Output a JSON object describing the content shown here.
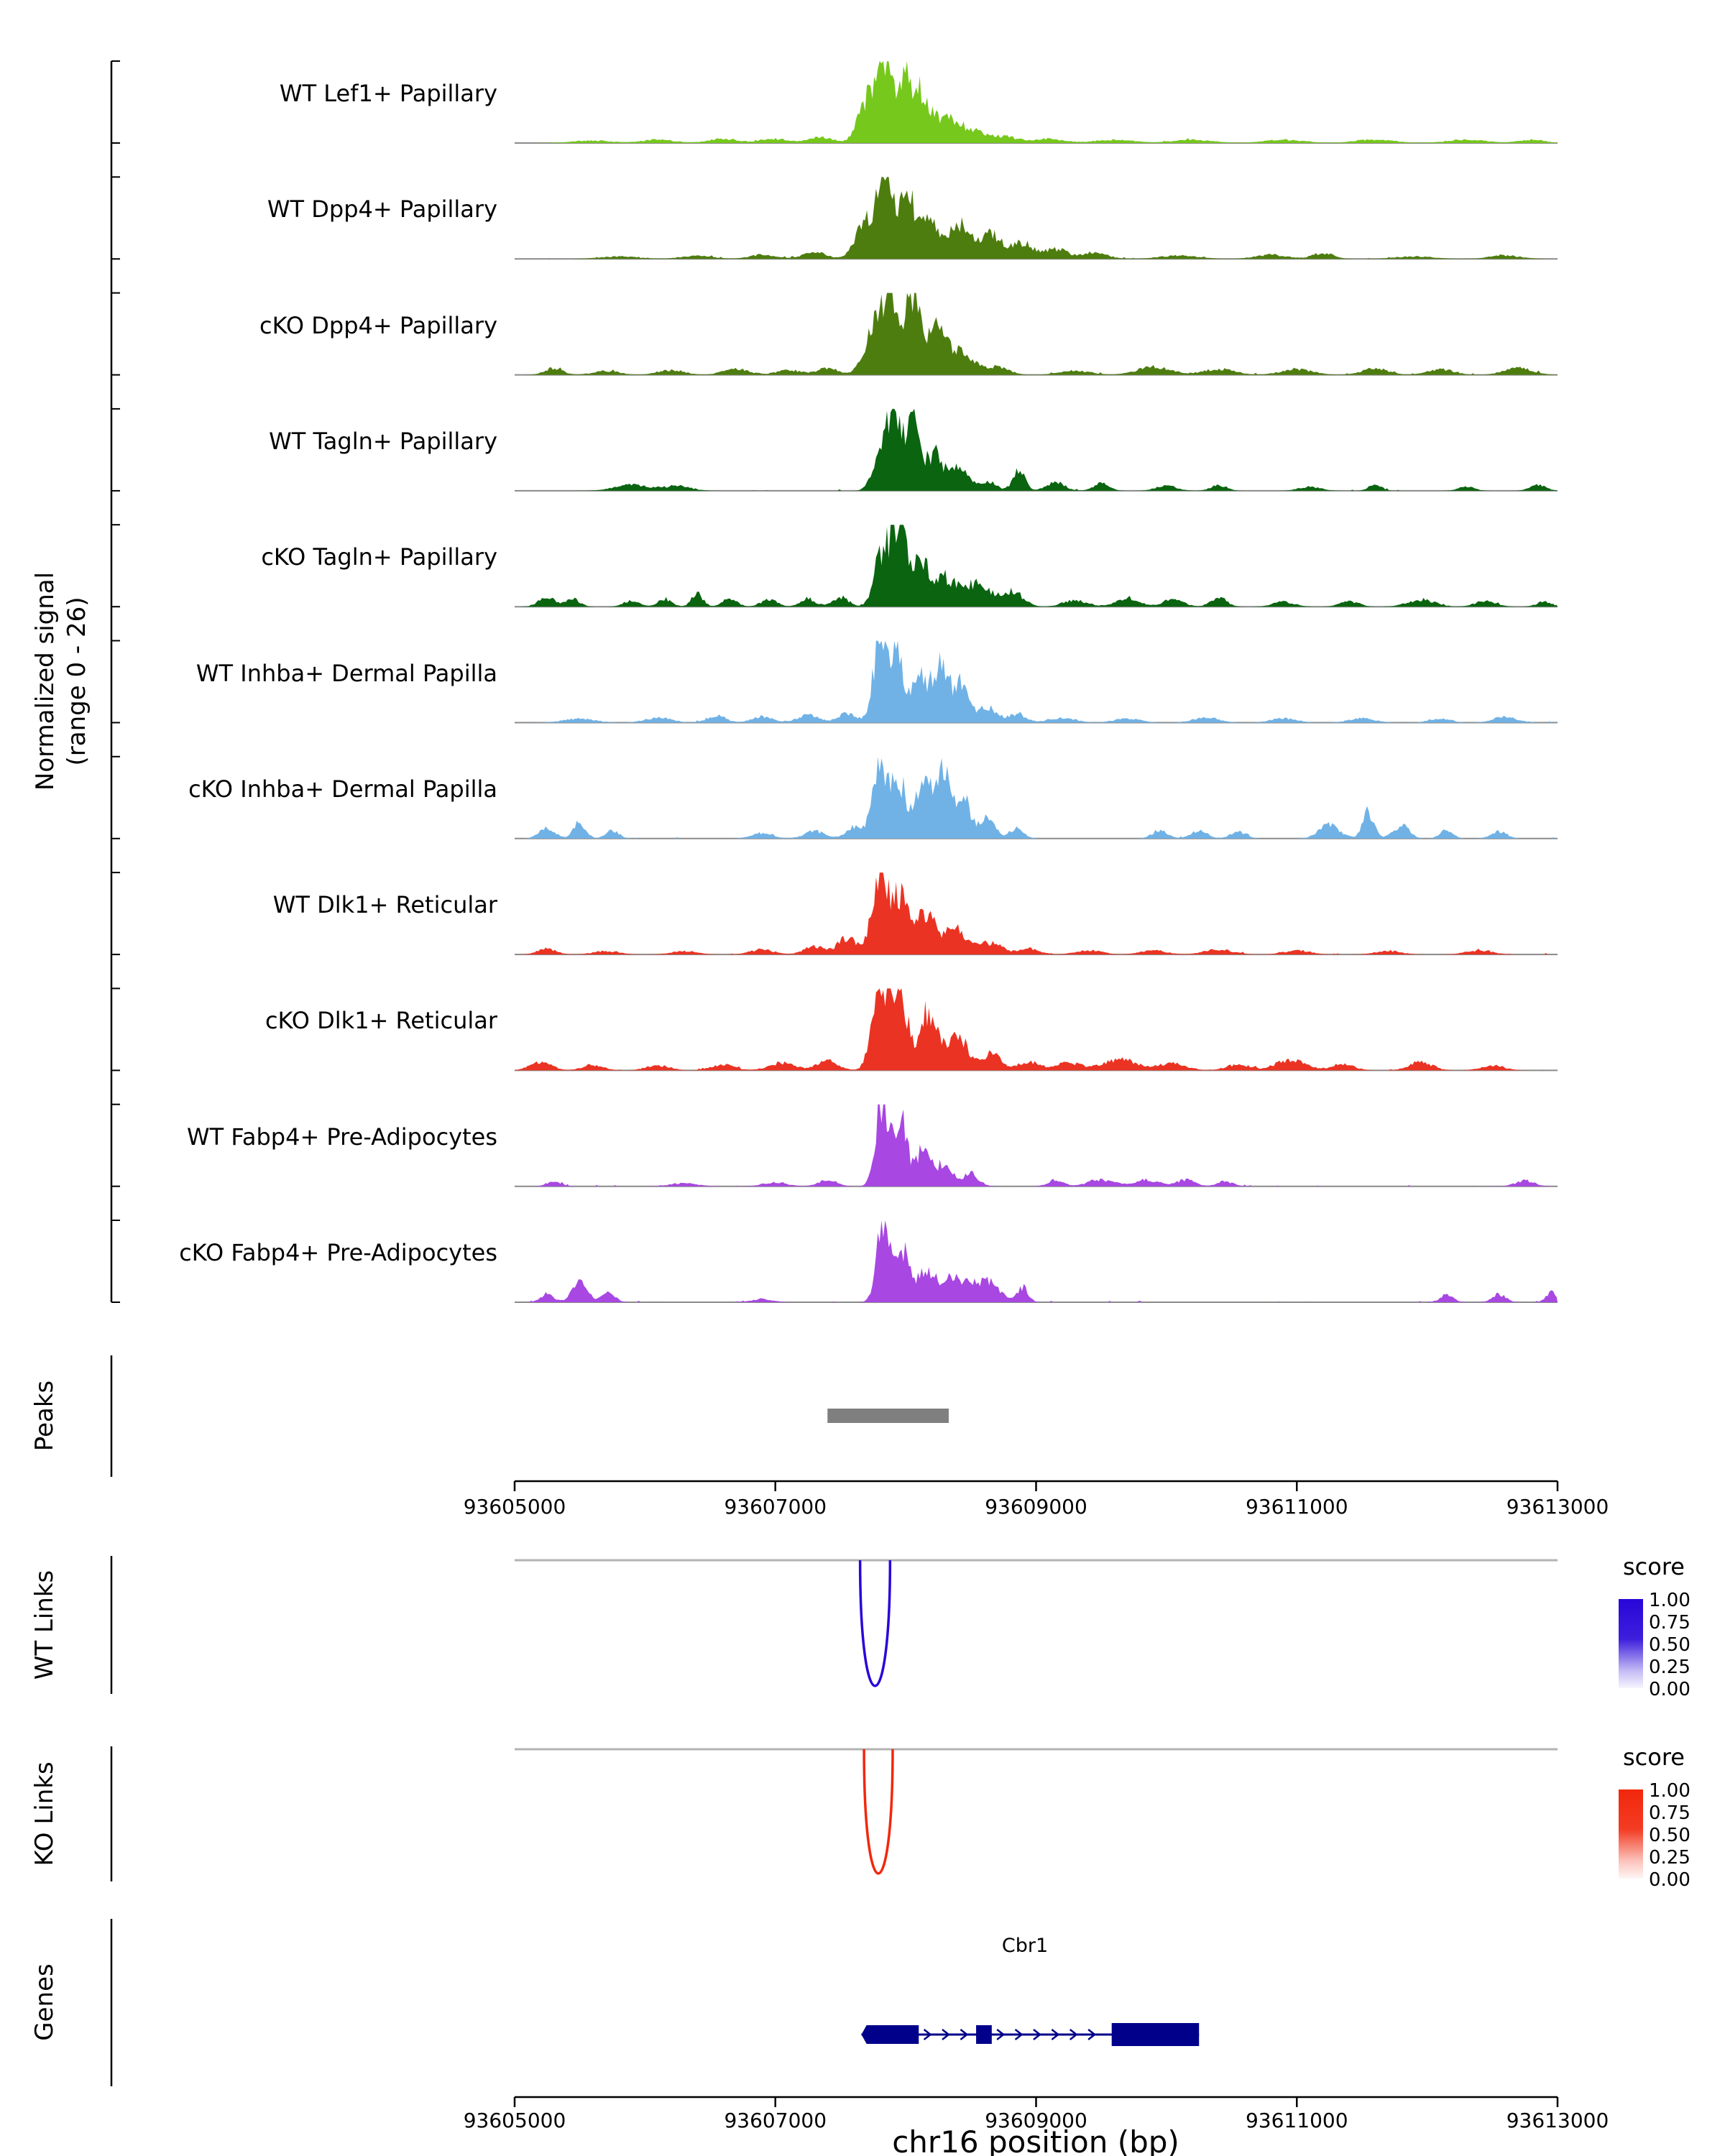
{
  "chart_data": {
    "type": "area",
    "title": "",
    "genome": {
      "chrom": "chr16",
      "start": 93605000,
      "end": 93613000,
      "ticks": [
        93605000,
        93607000,
        93609000,
        93611000,
        93613000
      ]
    },
    "y_axis": {
      "line1": "Normalized signal",
      "line2": "(range 0 - 26)",
      "range": [
        0,
        26
      ]
    },
    "x_axis": {
      "label": "chr16 position (bp)",
      "tick_labels": [
        "93605000",
        "93607000",
        "93609000",
        "93611000",
        "93613000"
      ]
    },
    "tracks": [
      {
        "label": "WT Lef1+ Papillary",
        "color": "#76C81C",
        "bumps": [
          [
            93605600,
            150,
            0.03
          ],
          [
            93606100,
            120,
            0.04
          ],
          [
            93606600,
            120,
            0.05
          ],
          [
            93607000,
            100,
            0.05
          ],
          [
            93607350,
            90,
            0.07
          ],
          [
            93607700,
            70,
            0.45
          ],
          [
            93607830,
            60,
            1.0
          ],
          [
            93607990,
            55,
            0.72
          ],
          [
            93608120,
            60,
            0.55
          ],
          [
            93608300,
            90,
            0.3
          ],
          [
            93608500,
            90,
            0.15
          ],
          [
            93608750,
            100,
            0.08
          ],
          [
            93609100,
            120,
            0.05
          ],
          [
            93609600,
            150,
            0.04
          ],
          [
            93610200,
            150,
            0.04
          ],
          [
            93610900,
            150,
            0.04
          ],
          [
            93611600,
            150,
            0.04
          ],
          [
            93612300,
            150,
            0.04
          ],
          [
            93612800,
            100,
            0.04
          ]
        ]
      },
      {
        "label": "WT Dpp4+ Papillary",
        "color": "#4E7D0F",
        "bumps": [
          [
            93605800,
            150,
            0.03
          ],
          [
            93606400,
            120,
            0.04
          ],
          [
            93606900,
            100,
            0.05
          ],
          [
            93607300,
            90,
            0.08
          ],
          [
            93607680,
            70,
            0.4
          ],
          [
            93607830,
            60,
            1.0
          ],
          [
            93608000,
            60,
            0.85
          ],
          [
            93608180,
            70,
            0.5
          ],
          [
            93608400,
            80,
            0.42
          ],
          [
            93608650,
            90,
            0.3
          ],
          [
            93608900,
            80,
            0.18
          ],
          [
            93609150,
            90,
            0.12
          ],
          [
            93609450,
            100,
            0.07
          ],
          [
            93610100,
            150,
            0.04
          ],
          [
            93610800,
            120,
            0.05
          ],
          [
            93611200,
            80,
            0.07
          ],
          [
            93611900,
            150,
            0.03
          ],
          [
            93612600,
            120,
            0.04
          ]
        ]
      },
      {
        "label": "cKO Dpp4+ Papillary",
        "color": "#4E7D0F",
        "bumps": [
          [
            93605300,
            70,
            0.08
          ],
          [
            93605700,
            100,
            0.05
          ],
          [
            93606200,
            100,
            0.06
          ],
          [
            93606700,
            100,
            0.07
          ],
          [
            93607100,
            90,
            0.06
          ],
          [
            93607400,
            80,
            0.08
          ],
          [
            93607750,
            70,
            0.55
          ],
          [
            93607880,
            60,
            0.95
          ],
          [
            93608050,
            60,
            1.0
          ],
          [
            93608250,
            80,
            0.55
          ],
          [
            93608450,
            80,
            0.25
          ],
          [
            93608700,
            90,
            0.1
          ],
          [
            93609300,
            120,
            0.05
          ],
          [
            93609900,
            130,
            0.09
          ],
          [
            93610400,
            120,
            0.07
          ],
          [
            93611000,
            120,
            0.07
          ],
          [
            93611600,
            100,
            0.08
          ],
          [
            93612100,
            100,
            0.07
          ],
          [
            93612700,
            110,
            0.08
          ]
        ]
      },
      {
        "label": "WT Tagln+ Papillary",
        "color": "#0B6410",
        "bumps": [
          [
            93605900,
            130,
            0.07
          ],
          [
            93606250,
            100,
            0.06
          ],
          [
            93607800,
            55,
            0.5
          ],
          [
            93607920,
            55,
            1.0
          ],
          [
            93608060,
            50,
            0.8
          ],
          [
            93608220,
            60,
            0.45
          ],
          [
            93608400,
            70,
            0.28
          ],
          [
            93608620,
            70,
            0.12
          ],
          [
            93608870,
            45,
            0.28
          ],
          [
            93609150,
            70,
            0.1
          ],
          [
            93609500,
            60,
            0.09
          ],
          [
            93610000,
            80,
            0.06
          ],
          [
            93610400,
            60,
            0.07
          ],
          [
            93611100,
            80,
            0.05
          ],
          [
            93611600,
            50,
            0.07
          ],
          [
            93612300,
            60,
            0.05
          ],
          [
            93612850,
            60,
            0.08
          ]
        ]
      },
      {
        "label": "cKO Tagln+ Papillary",
        "color": "#0B6410",
        "bumps": [
          [
            93605250,
            60,
            0.13
          ],
          [
            93605450,
            50,
            0.1
          ],
          [
            93605900,
            60,
            0.08
          ],
          [
            93606150,
            50,
            0.1
          ],
          [
            93606400,
            45,
            0.15
          ],
          [
            93606650,
            55,
            0.1
          ],
          [
            93606950,
            60,
            0.09
          ],
          [
            93607250,
            60,
            0.1
          ],
          [
            93607500,
            60,
            0.12
          ],
          [
            93607820,
            60,
            0.65
          ],
          [
            93607950,
            55,
            1.0
          ],
          [
            93608120,
            60,
            0.55
          ],
          [
            93608300,
            80,
            0.35
          ],
          [
            93608550,
            100,
            0.28
          ],
          [
            93608820,
            80,
            0.18
          ],
          [
            93609300,
            90,
            0.08
          ],
          [
            93609700,
            90,
            0.11
          ],
          [
            93610050,
            80,
            0.09
          ],
          [
            93610400,
            60,
            0.11
          ],
          [
            93610900,
            80,
            0.06
          ],
          [
            93611400,
            70,
            0.07
          ],
          [
            93611950,
            100,
            0.09
          ],
          [
            93612450,
            80,
            0.07
          ],
          [
            93612900,
            60,
            0.06
          ]
        ]
      },
      {
        "label": "WT Inhba+ Dermal Papilla",
        "color": "#70B2E6",
        "bumps": [
          [
            93605500,
            120,
            0.05
          ],
          [
            93606100,
            100,
            0.06
          ],
          [
            93606550,
            70,
            0.09
          ],
          [
            93606900,
            80,
            0.07
          ],
          [
            93607250,
            80,
            0.09
          ],
          [
            93607550,
            70,
            0.12
          ],
          [
            93607800,
            50,
            1.0
          ],
          [
            93607930,
            50,
            0.92
          ],
          [
            93608100,
            55,
            0.6
          ],
          [
            93608260,
            60,
            0.72
          ],
          [
            93608420,
            60,
            0.45
          ],
          [
            93608620,
            70,
            0.2
          ],
          [
            93608850,
            70,
            0.1
          ],
          [
            93609200,
            100,
            0.06
          ],
          [
            93609700,
            100,
            0.05
          ],
          [
            93610300,
            100,
            0.06
          ],
          [
            93610900,
            100,
            0.05
          ],
          [
            93611500,
            100,
            0.05
          ],
          [
            93612100,
            80,
            0.05
          ],
          [
            93612600,
            90,
            0.07
          ]
        ]
      },
      {
        "label": "cKO Inhba+ Dermal Papilla",
        "color": "#70B2E6",
        "bumps": [
          [
            93605250,
            60,
            0.14
          ],
          [
            93605500,
            45,
            0.2
          ],
          [
            93605750,
            50,
            0.1
          ],
          [
            93606900,
            80,
            0.07
          ],
          [
            93607300,
            80,
            0.09
          ],
          [
            93607600,
            60,
            0.15
          ],
          [
            93607800,
            55,
            0.95
          ],
          [
            93607950,
            55,
            0.7
          ],
          [
            93608130,
            55,
            0.65
          ],
          [
            93608280,
            55,
            0.92
          ],
          [
            93608440,
            50,
            0.55
          ],
          [
            93608620,
            60,
            0.25
          ],
          [
            93608850,
            55,
            0.12
          ],
          [
            93609950,
            60,
            0.1
          ],
          [
            93610250,
            60,
            0.1
          ],
          [
            93610550,
            60,
            0.08
          ],
          [
            93611250,
            80,
            0.16
          ],
          [
            93611550,
            45,
            0.32
          ],
          [
            93611800,
            60,
            0.16
          ],
          [
            93612150,
            50,
            0.1
          ],
          [
            93612550,
            60,
            0.09
          ]
        ]
      },
      {
        "label": "WT Dlk1+ Reticular",
        "color": "#EB3323",
        "bumps": [
          [
            93605250,
            70,
            0.07
          ],
          [
            93605700,
            100,
            0.04
          ],
          [
            93606300,
            100,
            0.04
          ],
          [
            93606900,
            90,
            0.06
          ],
          [
            93607300,
            80,
            0.1
          ],
          [
            93607550,
            70,
            0.2
          ],
          [
            93607800,
            60,
            1.0
          ],
          [
            93607960,
            60,
            0.7
          ],
          [
            93608150,
            70,
            0.5
          ],
          [
            93608380,
            90,
            0.3
          ],
          [
            93608650,
            90,
            0.14
          ],
          [
            93608950,
            80,
            0.07
          ],
          [
            93609400,
            100,
            0.05
          ],
          [
            93609900,
            100,
            0.05
          ],
          [
            93610400,
            110,
            0.06
          ],
          [
            93611000,
            100,
            0.05
          ],
          [
            93611700,
            100,
            0.04
          ],
          [
            93612400,
            100,
            0.05
          ]
        ]
      },
      {
        "label": "cKO Dlk1+ Reticular",
        "color": "#EB3323",
        "bumps": [
          [
            93605200,
            80,
            0.11
          ],
          [
            93605600,
            80,
            0.07
          ],
          [
            93606100,
            90,
            0.06
          ],
          [
            93606600,
            90,
            0.07
          ],
          [
            93607050,
            100,
            0.09
          ],
          [
            93607400,
            80,
            0.12
          ],
          [
            93607800,
            60,
            0.95
          ],
          [
            93607950,
            60,
            1.0
          ],
          [
            93608180,
            70,
            0.75
          ],
          [
            93608400,
            70,
            0.42
          ],
          [
            93608650,
            80,
            0.2
          ],
          [
            93608950,
            80,
            0.1
          ],
          [
            93609250,
            100,
            0.09
          ],
          [
            93609650,
            130,
            0.13
          ],
          [
            93610050,
            100,
            0.09
          ],
          [
            93610550,
            90,
            0.07
          ],
          [
            93610950,
            110,
            0.13
          ],
          [
            93611350,
            90,
            0.07
          ],
          [
            93611950,
            90,
            0.1
          ],
          [
            93612500,
            90,
            0.06
          ]
        ]
      },
      {
        "label": "WT Fabp4+ Pre-Adipocytes",
        "color": "#A847E2",
        "bumps": [
          [
            93605300,
            50,
            0.07
          ],
          [
            93606300,
            100,
            0.04
          ],
          [
            93607000,
            90,
            0.05
          ],
          [
            93607400,
            70,
            0.08
          ],
          [
            93607820,
            50,
            1.0
          ],
          [
            93607960,
            50,
            0.82
          ],
          [
            93608130,
            55,
            0.45
          ],
          [
            93608300,
            60,
            0.3
          ],
          [
            93608500,
            60,
            0.15
          ],
          [
            93609150,
            60,
            0.07
          ],
          [
            93609500,
            100,
            0.08
          ],
          [
            93609850,
            90,
            0.08
          ],
          [
            93610150,
            70,
            0.08
          ],
          [
            93610450,
            60,
            0.06
          ],
          [
            93612750,
            70,
            0.07
          ]
        ]
      },
      {
        "label": "cKO Fabp4+ Pre-Adipocytes",
        "color": "#A847E2",
        "bumps": [
          [
            93605250,
            50,
            0.1
          ],
          [
            93605500,
            60,
            0.24
          ],
          [
            93605720,
            50,
            0.12
          ],
          [
            93606900,
            80,
            0.04
          ],
          [
            93607830,
            50,
            1.0
          ],
          [
            93607970,
            55,
            0.6
          ],
          [
            93608150,
            80,
            0.32
          ],
          [
            93608400,
            120,
            0.3
          ],
          [
            93608650,
            80,
            0.22
          ],
          [
            93608900,
            40,
            0.18
          ],
          [
            93612150,
            50,
            0.09
          ],
          [
            93612550,
            50,
            0.1
          ],
          [
            93612950,
            40,
            0.12
          ]
        ]
      }
    ],
    "peaks": {
      "label": "Peaks",
      "color": "#7F7F7F",
      "regions": [
        {
          "start": 93607400,
          "end": 93608330
        }
      ]
    },
    "wt_links": {
      "label": "WT Links",
      "legend": {
        "title": "score",
        "ticks": [
          "1.00",
          "0.75",
          "0.50",
          "0.25",
          "0.00"
        ],
        "top_color": "#2806D9",
        "bottom_color": "#FFFFFF"
      },
      "links": [
        {
          "start": 93607650,
          "end": 93607880,
          "score": 1.0
        }
      ]
    },
    "ko_links": {
      "label": "KO Links",
      "legend": {
        "title": "score",
        "ticks": [
          "1.00",
          "0.75",
          "0.50",
          "0.25",
          "0.00"
        ],
        "top_color": "#F2270C",
        "bottom_color": "#FFFFFF"
      },
      "links": [
        {
          "start": 93607680,
          "end": 93607900,
          "score": 1.0
        }
      ]
    },
    "genes": {
      "label": "Genes",
      "gene": {
        "name": "Cbr1",
        "strand": "+",
        "color": "#00008B",
        "start": 93607660,
        "end": 93610250,
        "exons": [
          {
            "start": 93607700,
            "end": 93608100
          },
          {
            "start": 93608540,
            "end": 93608660
          },
          {
            "start": 93609580,
            "end": 93610250
          }
        ]
      }
    }
  }
}
